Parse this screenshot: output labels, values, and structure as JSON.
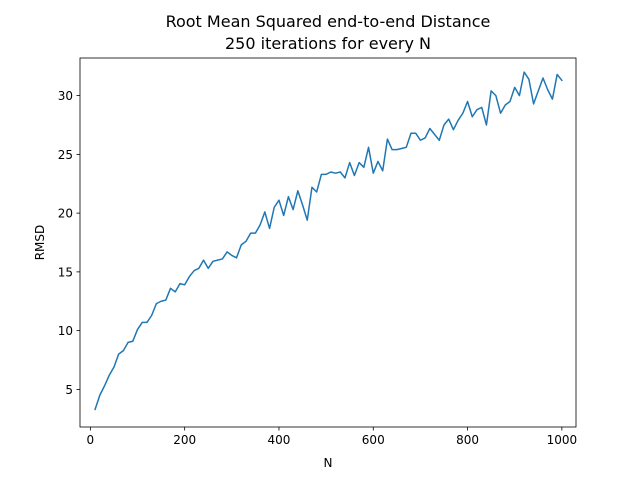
{
  "chart_data": {
    "type": "line",
    "title_lines": [
      "Root Mean Squared end-to-end Distance",
      "250 iterations for every N"
    ],
    "xlabel": "N",
    "ylabel": "RMSD",
    "xlim": [
      -22,
      1030
    ],
    "ylim": [
      1.8,
      33.2
    ],
    "xticks": [
      0,
      200,
      400,
      600,
      800,
      1000
    ],
    "yticks": [
      5,
      10,
      15,
      20,
      25,
      30
    ],
    "grid": false,
    "color": "#1f77b4",
    "series": [
      {
        "x": [
          10,
          20,
          30,
          40,
          50,
          60,
          70,
          80,
          90,
          100,
          110,
          120,
          130,
          140,
          150,
          160,
          170,
          180,
          190,
          200,
          210,
          220,
          230,
          240,
          250,
          260,
          270,
          280,
          290,
          300,
          310,
          320,
          330,
          340,
          350,
          360,
          370,
          380,
          390,
          400,
          410,
          420,
          430,
          440,
          450,
          460,
          470,
          480,
          490,
          500,
          510,
          520,
          530,
          540,
          550,
          560,
          570,
          580,
          590,
          600,
          610,
          620,
          630,
          640,
          650,
          660,
          670,
          680,
          690,
          700,
          710,
          720,
          730,
          740,
          750,
          760,
          770,
          780,
          790,
          800,
          810,
          820,
          830,
          840,
          850,
          860,
          870,
          880,
          890,
          900,
          910,
          920,
          930,
          940,
          950,
          960,
          970,
          980,
          990,
          1000
        ],
        "values": [
          3.3,
          4.5,
          5.3,
          6.2,
          6.9,
          8.0,
          8.3,
          9.0,
          9.1,
          10.1,
          10.7,
          10.7,
          11.3,
          12.3,
          12.5,
          12.6,
          13.6,
          13.3,
          14.0,
          13.9,
          14.6,
          15.1,
          15.3,
          16.0,
          15.3,
          15.9,
          16.0,
          16.1,
          16.7,
          16.4,
          16.2,
          17.3,
          17.6,
          18.3,
          18.3,
          19.0,
          20.1,
          18.7,
          20.5,
          21.1,
          19.8,
          21.4,
          20.3,
          21.9,
          20.7,
          19.4,
          22.2,
          21.8,
          23.3,
          23.3,
          23.5,
          23.4,
          23.5,
          23.0,
          24.3,
          23.2,
          24.3,
          23.9,
          25.6,
          23.4,
          24.4,
          23.6,
          26.3,
          25.4,
          25.4,
          25.5,
          25.6,
          26.8,
          26.8,
          26.2,
          26.4,
          27.2,
          26.7,
          26.2,
          27.5,
          28.0,
          27.1,
          27.9,
          28.5,
          29.5,
          28.2,
          28.8,
          29.0,
          27.5,
          30.4,
          30.0,
          28.5,
          29.2,
          29.5,
          30.7,
          30.0,
          32.0,
          31.4,
          29.3,
          30.4,
          31.5,
          30.5,
          29.7,
          31.8,
          31.3
        ]
      }
    ]
  }
}
